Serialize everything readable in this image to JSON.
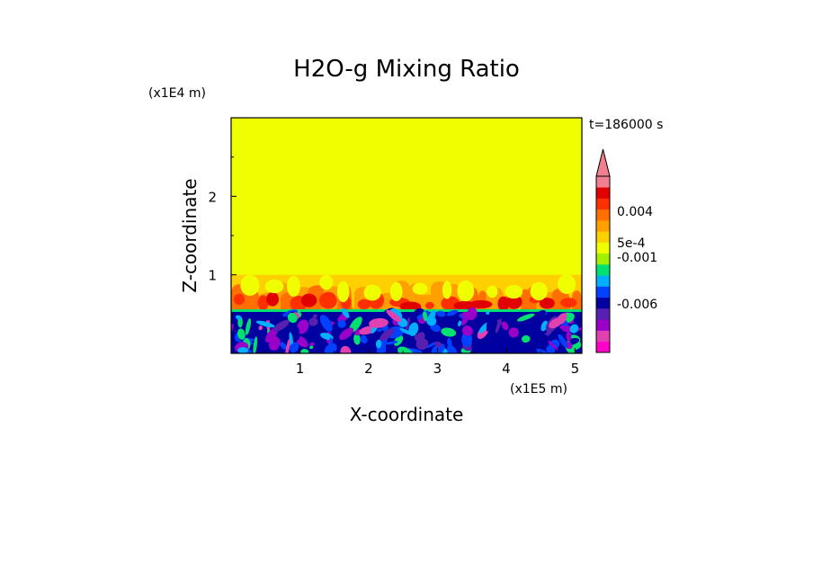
{
  "chart_data": {
    "type": "heatmap",
    "title": "H2O-g Mixing Ratio",
    "xlabel": "X-coordinate",
    "ylabel": "Z-coordinate",
    "x_unit": "(x1E5 m)",
    "y_unit": "(x1E4 m)",
    "time_label": "t=186000 s",
    "xlim": [
      0,
      5.1
    ],
    "ylim": [
      0,
      3.0
    ],
    "x_ticks": [
      1,
      2,
      3,
      4,
      5
    ],
    "y_ticks": [
      1,
      2
    ],
    "colorbar": {
      "levels": [
        {
          "color": "#ff00c8"
        },
        {
          "color": "#e040b0"
        },
        {
          "color": "#9a00c8"
        },
        {
          "color": "#5820b0"
        },
        {
          "color": "#0000a0"
        },
        {
          "color": "#0040ff"
        },
        {
          "color": "#00b0ff"
        },
        {
          "color": "#00e070"
        },
        {
          "color": "#a0f000"
        },
        {
          "color": "#f0ff00"
        },
        {
          "color": "#ffd000"
        },
        {
          "color": "#ffa000"
        },
        {
          "color": "#ff7000"
        },
        {
          "color": "#ff3000"
        },
        {
          "color": "#e00000"
        },
        {
          "color": "#f08090"
        }
      ],
      "labels": [
        "0.004",
        "5e-4",
        "-0.001",
        "-0.006"
      ],
      "extend": "max"
    },
    "field_description": {
      "boundary_layer_top": 0.55,
      "mixed_zone_top": 1.0
    }
  }
}
